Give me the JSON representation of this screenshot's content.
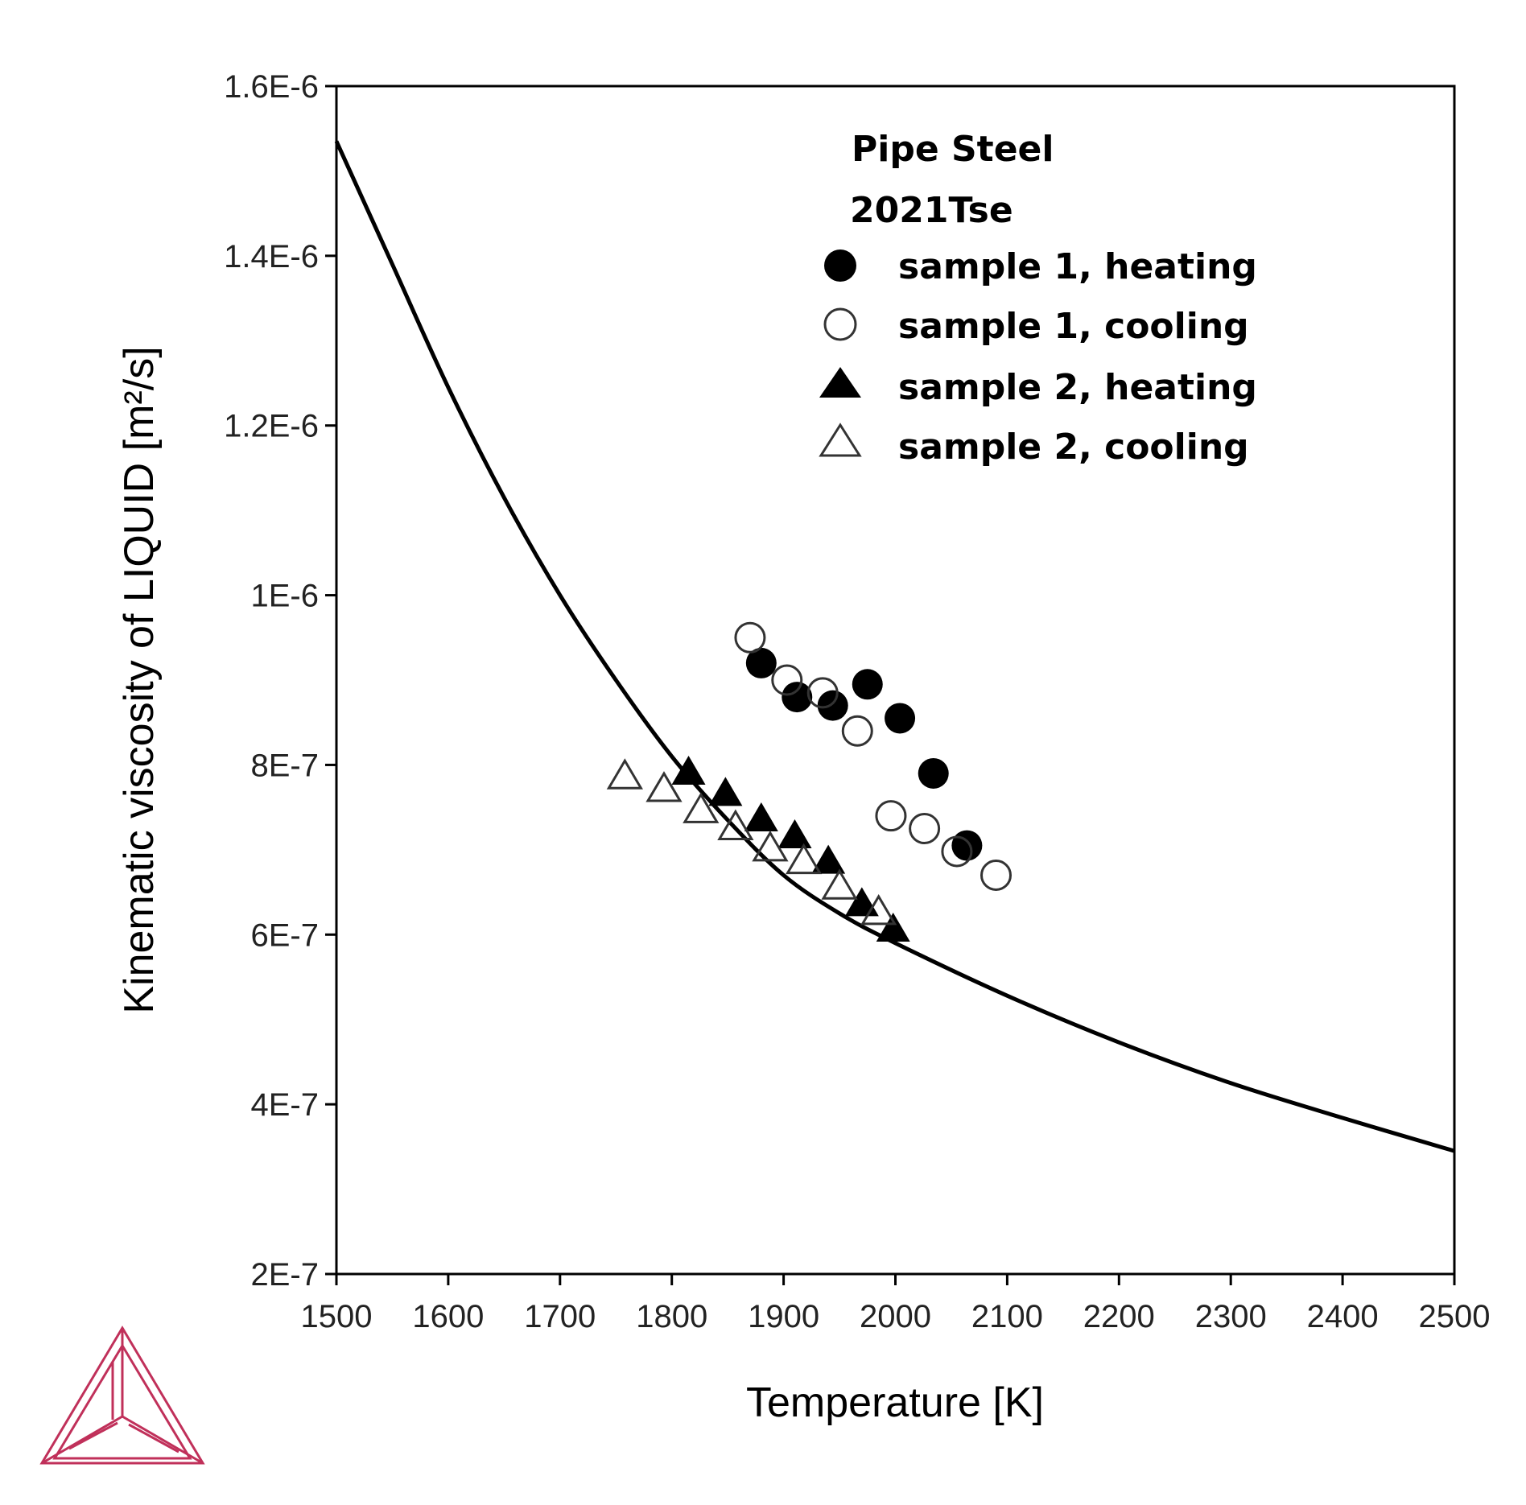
{
  "chart_data": {
    "type": "scatter",
    "title": "",
    "xlabel": "Temperature [K]",
    "ylabel": "Kinematic viscosity of LIQUID [m²/s]",
    "xlim": [
      1500,
      2500
    ],
    "ylim": [
      2e-07,
      1.6e-06
    ],
    "x_ticks": [
      1500,
      1600,
      1700,
      1800,
      1900,
      2000,
      2100,
      2200,
      2300,
      2400,
      2500
    ],
    "x_tick_labels": [
      "1500",
      "1600",
      "1700",
      "1800",
      "1900",
      "2000",
      "2100",
      "2200",
      "2300",
      "2400",
      "2500"
    ],
    "y_ticks": [
      2e-07,
      4e-07,
      6e-07,
      8e-07,
      1e-06,
      1.2e-06,
      1.4e-06,
      1.6e-06
    ],
    "y_tick_labels": [
      "2E-7",
      "4E-7",
      "6E-7",
      "8E-7",
      "1E-6",
      "1.2E-6",
      "1.4E-6",
      "1.6E-6"
    ],
    "grid": false,
    "legend_position": "top-right",
    "legend_headers": [
      "Pipe Steel",
      "2021Tse"
    ],
    "calculated_curve": {
      "x": [
        1500,
        1550,
        1600,
        1650,
        1700,
        1750,
        1800,
        1850,
        1900,
        1950,
        2000,
        2100,
        2200,
        2300,
        2400,
        2500
      ],
      "y": [
        1.535e-06,
        1.39e-06,
        1.245e-06,
        1.115e-06,
        1e-06,
        9e-07,
        8.1e-07,
        7.35e-07,
        6.7e-07,
        6.25e-07,
        5.9e-07,
        5.28e-07,
        4.73e-07,
        4.25e-07,
        3.84e-07,
        3.45e-07
      ]
    },
    "series": [
      {
        "name": "sample 1, heating",
        "marker": "filled-circle",
        "x": [
          1880,
          1912,
          1944,
          1975,
          2004,
          2034,
          2064
        ],
        "y": [
          9.2e-07,
          8.8e-07,
          8.7e-07,
          8.95e-07,
          8.55e-07,
          7.9e-07,
          7.05e-07
        ]
      },
      {
        "name": "sample 1, cooling",
        "marker": "open-circle",
        "x": [
          1870,
          1903,
          1935,
          1966,
          1996,
          2026,
          2055,
          2090
        ],
        "y": [
          9.5e-07,
          9e-07,
          8.85e-07,
          8.4e-07,
          7.4e-07,
          7.25e-07,
          6.98e-07,
          6.7e-07
        ]
      },
      {
        "name": "sample 2, heating",
        "marker": "filled-triangle",
        "x": [
          1815,
          1848,
          1880,
          1910,
          1940,
          1970,
          1998
        ],
        "y": [
          7.9e-07,
          7.65e-07,
          7.35e-07,
          7.15e-07,
          6.85e-07,
          6.35e-07,
          6.05e-07
        ]
      },
      {
        "name": "sample 2, cooling",
        "marker": "open-triangle",
        "x": [
          1758,
          1793,
          1826,
          1857,
          1888,
          1918,
          1950,
          1985
        ],
        "y": [
          7.85e-07,
          7.7e-07,
          7.45e-07,
          7.25e-07,
          7e-07,
          6.85e-07,
          6.55e-07,
          6.25e-07
        ]
      }
    ]
  },
  "colors": {
    "axis": "#000000",
    "curve": "#000000",
    "logo": "#c0305a"
  },
  "logo_icon": "thermo-calc-triangle-logo"
}
